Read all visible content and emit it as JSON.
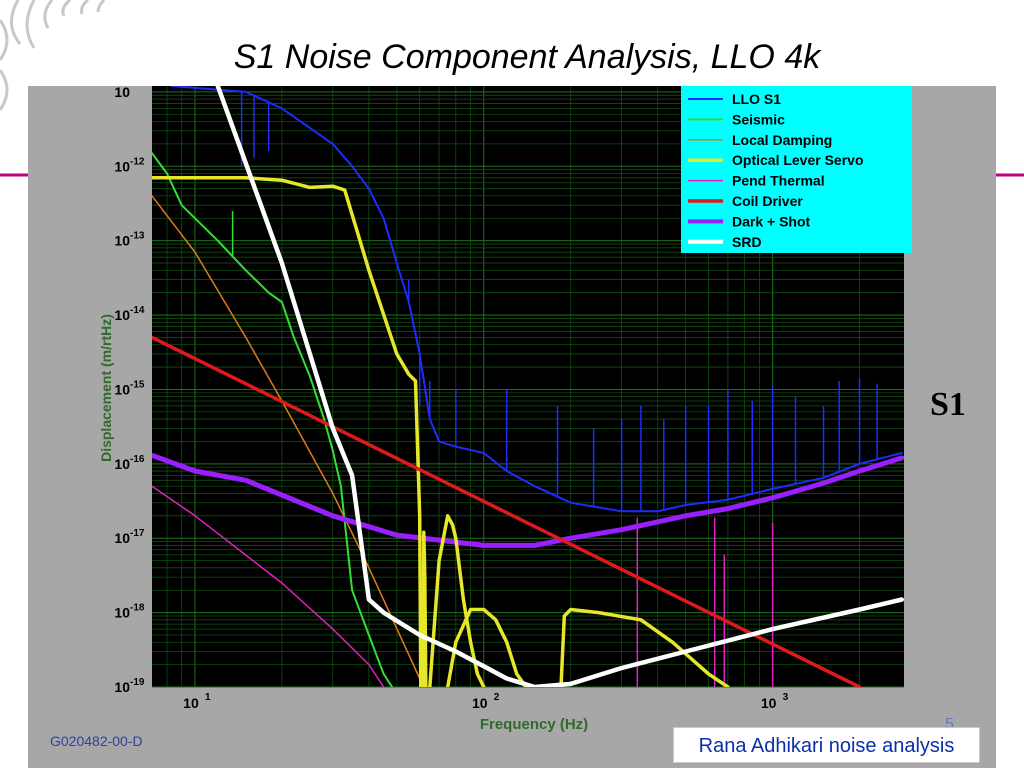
{
  "slide": {
    "title": "S1 Noise Component Analysis, LLO 4k",
    "side_label": "S1",
    "doc_id": "G020482-00-D",
    "page_number": "5",
    "credit": "Rana Adhikari noise analysis"
  },
  "colors": {
    "plot_background": "#000000",
    "panel_gray": "#a7a7a7",
    "axis_text": "#2f6b2a",
    "legend_background": "#00ffff",
    "accent_magenta": "#c0007a"
  },
  "chart_data": {
    "type": "line",
    "xlabel": "Frequency (Hz)",
    "ylabel": "Displacement (m/rtHz)",
    "x_scale": "log",
    "y_scale": "log",
    "xlim": [
      7.1,
      2850
    ],
    "ylim": [
      1e-19,
      1.2e-11
    ],
    "grid": true,
    "legend_position": "top-right",
    "x_ticks": [
      {
        "value": 10,
        "base": "10",
        "exp": "1"
      },
      {
        "value": 100,
        "base": "10",
        "exp": "2"
      },
      {
        "value": 1000,
        "base": "10",
        "exp": "3"
      }
    ],
    "y_ticks": [
      {
        "value": 1e-19,
        "base": "10",
        "exp": "-19"
      },
      {
        "value": 1e-18,
        "base": "10",
        "exp": "-18"
      },
      {
        "value": 1e-17,
        "base": "10",
        "exp": "-17"
      },
      {
        "value": 1e-16,
        "base": "10",
        "exp": "-16"
      },
      {
        "value": 1e-15,
        "base": "10",
        "exp": "-15"
      },
      {
        "value": 1e-14,
        "base": "10",
        "exp": "-14"
      },
      {
        "value": 1e-13,
        "base": "10",
        "exp": "-13"
      },
      {
        "value": 1e-12,
        "base": "10",
        "exp": "-12"
      },
      {
        "value": 1e-11,
        "base": "10",
        "exp": ""
      }
    ],
    "series": [
      {
        "name": "LLO S1",
        "color": "#1f2bff",
        "width": 2,
        "points": [
          [
            8.3,
            1.2e-11
          ],
          [
            15,
            1e-11
          ],
          [
            20,
            6e-12
          ],
          [
            30,
            2e-12
          ],
          [
            35,
            1e-12
          ],
          [
            40,
            5e-13
          ],
          [
            45,
            2e-13
          ],
          [
            50,
            5e-14
          ],
          [
            55,
            1.5e-14
          ],
          [
            60,
            3e-15
          ],
          [
            65,
            4e-16
          ],
          [
            70,
            2e-16
          ],
          [
            80,
            1.7e-16
          ],
          [
            100,
            1.4e-16
          ],
          [
            120,
            8e-17
          ],
          [
            150,
            5e-17
          ],
          [
            200,
            3e-17
          ],
          [
            300,
            2.3e-17
          ],
          [
            400,
            2.3e-17
          ],
          [
            500,
            2.8e-17
          ],
          [
            700,
            3.3e-17
          ],
          [
            1000,
            4.6e-17
          ],
          [
            1500,
            6.5e-17
          ],
          [
            2000,
            1e-16
          ],
          [
            2800,
            1.4e-16
          ]
        ],
        "peaks": [
          [
            14.5,
            1e-12
          ],
          [
            16,
            1.3e-12
          ],
          [
            18,
            1.6e-12
          ],
          [
            28,
            2.4e-12
          ],
          [
            55,
            3e-14
          ],
          [
            60,
            6e-16
          ],
          [
            65,
            1.3e-15
          ],
          [
            80,
            1e-15
          ],
          [
            120,
            1e-15
          ],
          [
            180,
            6e-16
          ],
          [
            240,
            3e-16
          ],
          [
            300,
            4e-16
          ],
          [
            350,
            6e-16
          ],
          [
            420,
            4e-16
          ],
          [
            500,
            6e-16
          ],
          [
            600,
            6e-16
          ],
          [
            700,
            1e-15
          ],
          [
            850,
            7e-16
          ],
          [
            1000,
            1.1e-15
          ],
          [
            1200,
            8e-16
          ],
          [
            1500,
            6e-16
          ],
          [
            1700,
            1.3e-15
          ],
          [
            2000,
            1.4e-15
          ],
          [
            2300,
            1.2e-15
          ]
        ]
      },
      {
        "name": "Seismic",
        "color": "#33dd33",
        "width": 2,
        "points": [
          [
            7.1,
            1.5e-12
          ],
          [
            8,
            8e-13
          ],
          [
            9,
            3e-13
          ],
          [
            10,
            2e-13
          ],
          [
            12,
            1e-13
          ],
          [
            15,
            4e-14
          ],
          [
            18,
            2e-14
          ],
          [
            20,
            1.5e-14
          ],
          [
            22,
            5e-15
          ],
          [
            25,
            1.5e-15
          ],
          [
            28,
            4e-16
          ],
          [
            30,
            1.5e-16
          ],
          [
            32,
            5e-17
          ],
          [
            35,
            2e-18
          ],
          [
            40,
            5e-19
          ],
          [
            45,
            1.5e-19
          ],
          [
            50,
            8e-20
          ]
        ],
        "peaks": [
          [
            13.5,
            2.5e-13
          ]
        ]
      },
      {
        "name": "Local Damping",
        "color": "#e07b1a",
        "width": 1.5,
        "points": [
          [
            7.1,
            4e-13
          ],
          [
            10,
            7e-14
          ],
          [
            15,
            5e-15
          ],
          [
            20,
            7e-16
          ],
          [
            30,
            4e-17
          ],
          [
            40,
            4e-18
          ],
          [
            60,
            1.3e-19
          ],
          [
            70,
            5e-20
          ]
        ]
      },
      {
        "name": "Optical Lever Servo",
        "color": "#e6e62a",
        "width": 3.5,
        "segments": [
          [
            [
              7.1,
              7e-13
            ],
            [
              15,
              7e-13
            ],
            [
              20,
              6.5e-13
            ],
            [
              25,
              5.2e-13
            ],
            [
              30,
              5.4e-13
            ],
            [
              33,
              4.8e-13
            ],
            [
              40,
              4e-14
            ],
            [
              50,
              3e-15
            ],
            [
              55,
              1.6e-15
            ],
            [
              58,
              1.3e-15
            ],
            [
              60,
              2e-17
            ],
            [
              60.5,
              1e-19
            ]
          ],
          [
            [
              61.5,
              1e-19
            ],
            [
              62,
              1.2e-17
            ],
            [
              62.5,
              3e-18
            ],
            [
              63,
              1e-19
            ]
          ],
          [
            [
              65,
              1e-19
            ],
            [
              70,
              5e-18
            ],
            [
              75,
              2e-17
            ],
            [
              78,
              1.5e-17
            ],
            [
              80,
              1e-17
            ],
            [
              85,
              1.5e-18
            ],
            [
              90,
              4e-19
            ],
            [
              95,
              1.5e-19
            ],
            [
              100,
              1e-19
            ]
          ],
          [
            [
              75,
              1e-19
            ],
            [
              80,
              4e-19
            ],
            [
              90,
              1.1e-18
            ],
            [
              100,
              1.1e-18
            ],
            [
              110,
              8e-19
            ],
            [
              120,
              4e-19
            ],
            [
              130,
              1.5e-19
            ],
            [
              140,
              1e-19
            ]
          ],
          [
            [
              185,
              1e-19
            ],
            [
              190,
              9e-19
            ],
            [
              200,
              1.1e-18
            ],
            [
              250,
              1e-18
            ],
            [
              350,
              8e-19
            ],
            [
              450,
              4e-19
            ],
            [
              600,
              1.5e-19
            ],
            [
              700,
              1e-19
            ]
          ]
        ]
      },
      {
        "name": "Pend Thermal",
        "color": "#e020c0",
        "width": 1.5,
        "points": [
          [
            7.1,
            5e-17
          ],
          [
            10,
            2e-17
          ],
          [
            20,
            2.5e-18
          ],
          [
            30,
            6e-19
          ],
          [
            40,
            2e-19
          ],
          [
            45,
            1e-19
          ]
        ],
        "peaks": [
          [
            340,
            1.9e-17
          ],
          [
            630,
            1.9e-17
          ],
          [
            680,
            6e-18
          ],
          [
            1000,
            1.6e-17
          ]
        ]
      },
      {
        "name": "Coil Driver",
        "color": "#e01a1a",
        "width": 3.5,
        "points": [
          [
            7.1,
            5e-15
          ],
          [
            2000,
            1e-19
          ]
        ]
      },
      {
        "name": "Dark + Shot",
        "color": "#9a1fff",
        "width": 5,
        "points": [
          [
            7.1,
            1.3e-16
          ],
          [
            10,
            8e-17
          ],
          [
            15,
            6e-17
          ],
          [
            20,
            3.8e-17
          ],
          [
            30,
            2e-17
          ],
          [
            50,
            1.1e-17
          ],
          [
            100,
            8e-18
          ],
          [
            150,
            8e-18
          ],
          [
            200,
            1e-17
          ],
          [
            300,
            1.3e-17
          ],
          [
            500,
            2e-17
          ],
          [
            700,
            2.5e-17
          ],
          [
            1000,
            3.5e-17
          ],
          [
            1500,
            5.5e-17
          ],
          [
            2000,
            8e-17
          ],
          [
            2800,
            1.2e-16
          ]
        ]
      },
      {
        "name": "SRD",
        "color": "#ffffff",
        "width": 4.5,
        "points": [
          [
            12,
            1.2e-11
          ],
          [
            20,
            5e-14
          ],
          [
            30,
            3e-16
          ],
          [
            35,
            7e-17
          ],
          [
            40,
            1.5e-18
          ],
          [
            45,
            1e-18
          ],
          [
            60,
            5e-19
          ],
          [
            80,
            3e-19
          ],
          [
            100,
            1.9e-19
          ],
          [
            120,
            1.3e-19
          ],
          [
            150,
            1e-19
          ],
          [
            200,
            1.1e-19
          ],
          [
            300,
            1.8e-19
          ],
          [
            500,
            3e-19
          ],
          [
            1000,
            6e-19
          ],
          [
            2000,
            1.1e-18
          ],
          [
            2800,
            1.5e-18
          ]
        ]
      }
    ]
  }
}
